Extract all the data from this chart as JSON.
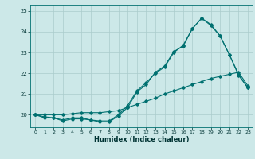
{
  "xlabel": "Humidex (Indice chaleur)",
  "background_color": "#cce8e8",
  "grid_color": "#aacccc",
  "line_color": "#007070",
  "xlim": [
    -0.5,
    23.5
  ],
  "ylim": [
    19.4,
    25.3
  ],
  "yticks": [
    20,
    21,
    22,
    23,
    24,
    25
  ],
  "xticks": [
    0,
    1,
    2,
    3,
    4,
    5,
    6,
    7,
    8,
    9,
    10,
    11,
    12,
    13,
    14,
    15,
    16,
    17,
    18,
    19,
    20,
    21,
    22,
    23
  ],
  "line1_x": [
    0,
    1,
    2,
    3,
    4,
    5,
    6,
    7,
    8,
    9,
    10,
    11,
    12,
    13,
    14,
    15,
    16,
    17,
    18,
    19,
    20,
    21,
    22,
    23
  ],
  "line1_y": [
    20.0,
    19.85,
    19.85,
    19.75,
    19.85,
    19.85,
    19.75,
    19.65,
    19.65,
    19.95,
    20.35,
    21.1,
    21.45,
    22.05,
    22.35,
    23.05,
    23.3,
    24.15,
    24.65,
    24.35,
    23.8,
    22.9,
    21.95,
    21.3
  ],
  "line2_x": [
    0,
    1,
    2,
    3,
    4,
    5,
    6,
    7,
    8,
    9,
    10,
    11,
    12,
    13,
    14,
    15,
    16,
    17,
    18,
    19,
    20,
    21,
    22,
    23
  ],
  "line2_y": [
    20.0,
    19.9,
    19.85,
    19.7,
    19.8,
    19.8,
    19.75,
    19.7,
    19.7,
    20.0,
    20.45,
    21.15,
    21.55,
    22.0,
    22.3,
    23.0,
    23.35,
    24.15,
    24.65,
    24.3,
    23.8,
    22.9,
    21.9,
    21.3
  ],
  "line3_x": [
    0,
    1,
    2,
    3,
    4,
    5,
    6,
    7,
    8,
    9,
    10,
    11,
    12,
    13,
    14,
    15,
    16,
    17,
    18,
    19,
    20,
    21,
    22,
    23
  ],
  "line3_y": [
    20.0,
    20.0,
    20.0,
    20.0,
    20.05,
    20.1,
    20.1,
    20.1,
    20.15,
    20.2,
    20.35,
    20.5,
    20.65,
    20.8,
    21.0,
    21.15,
    21.3,
    21.45,
    21.6,
    21.75,
    21.85,
    21.95,
    22.05,
    21.4
  ]
}
